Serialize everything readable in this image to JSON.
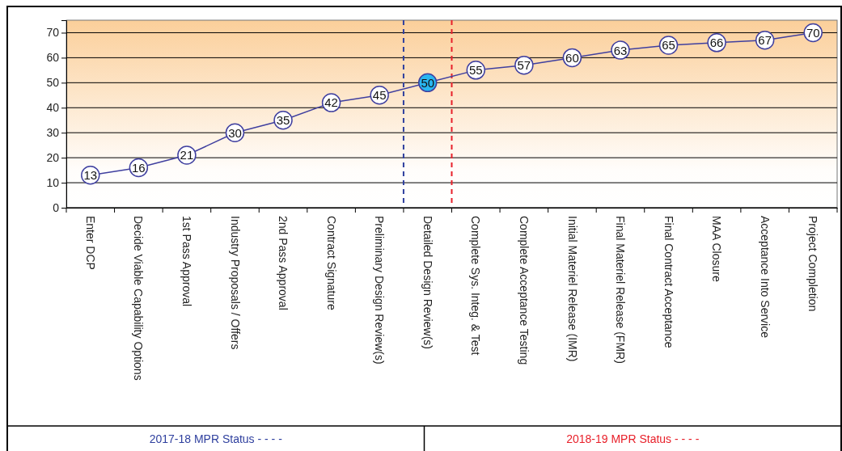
{
  "chart_data": {
    "type": "line",
    "categories": [
      "Enter DCP",
      "Decide Viable Capability Options",
      "1st Pass Approval",
      "Industry Proposals / Offers",
      "2nd Pass Approval",
      "Contract Signature",
      "Preliminary Design Review(s)",
      "Detailed Design Review(s)",
      "Complete Sys. Integ. & Test",
      "Complete Acceptance Testing",
      "Initial Materiel Release (IMR)",
      "Final Materiel Release (FMR)",
      "Final Contract Acceptance",
      "MAA Closure",
      "Acceptance Into Service",
      "Project Completion"
    ],
    "series": [
      {
        "color": "#3f3f9f",
        "values": [
          13,
          16,
          21,
          30,
          35,
          42,
          45,
          50,
          55,
          57,
          60,
          63,
          65,
          66,
          67,
          70
        ],
        "colors": [
          "#ffffff",
          "#ffffff",
          "#ffffff",
          "#ffffff",
          "#ffffff",
          "#ffffff",
          "#ffffff",
          "#29b6f0",
          "#ffffff",
          "#ffffff",
          "#ffffff",
          "#ffffff",
          "#ffffff",
          "#ffffff",
          "#ffffff",
          "#ffffff"
        ]
      }
    ],
    "ylim": [
      0,
      75
    ],
    "yticks": [
      0,
      10,
      20,
      30,
      40,
      50,
      60,
      70
    ],
    "grid": "y",
    "marker": "circle",
    "data_labels": true,
    "ref_lines": [
      {
        "axis": "x",
        "value": "Detailed Design Review(s)",
        "label": "2017-18 MPR Status - - - -",
        "color": "#2e3f9e",
        "line_style": "dashed"
      },
      {
        "axis": "x",
        "value": "Complete Sys. Integ. & Test",
        "label": "2018-19 MPR Status - - - -",
        "color": "#e8202a",
        "line_style": "dashed"
      }
    ]
  }
}
